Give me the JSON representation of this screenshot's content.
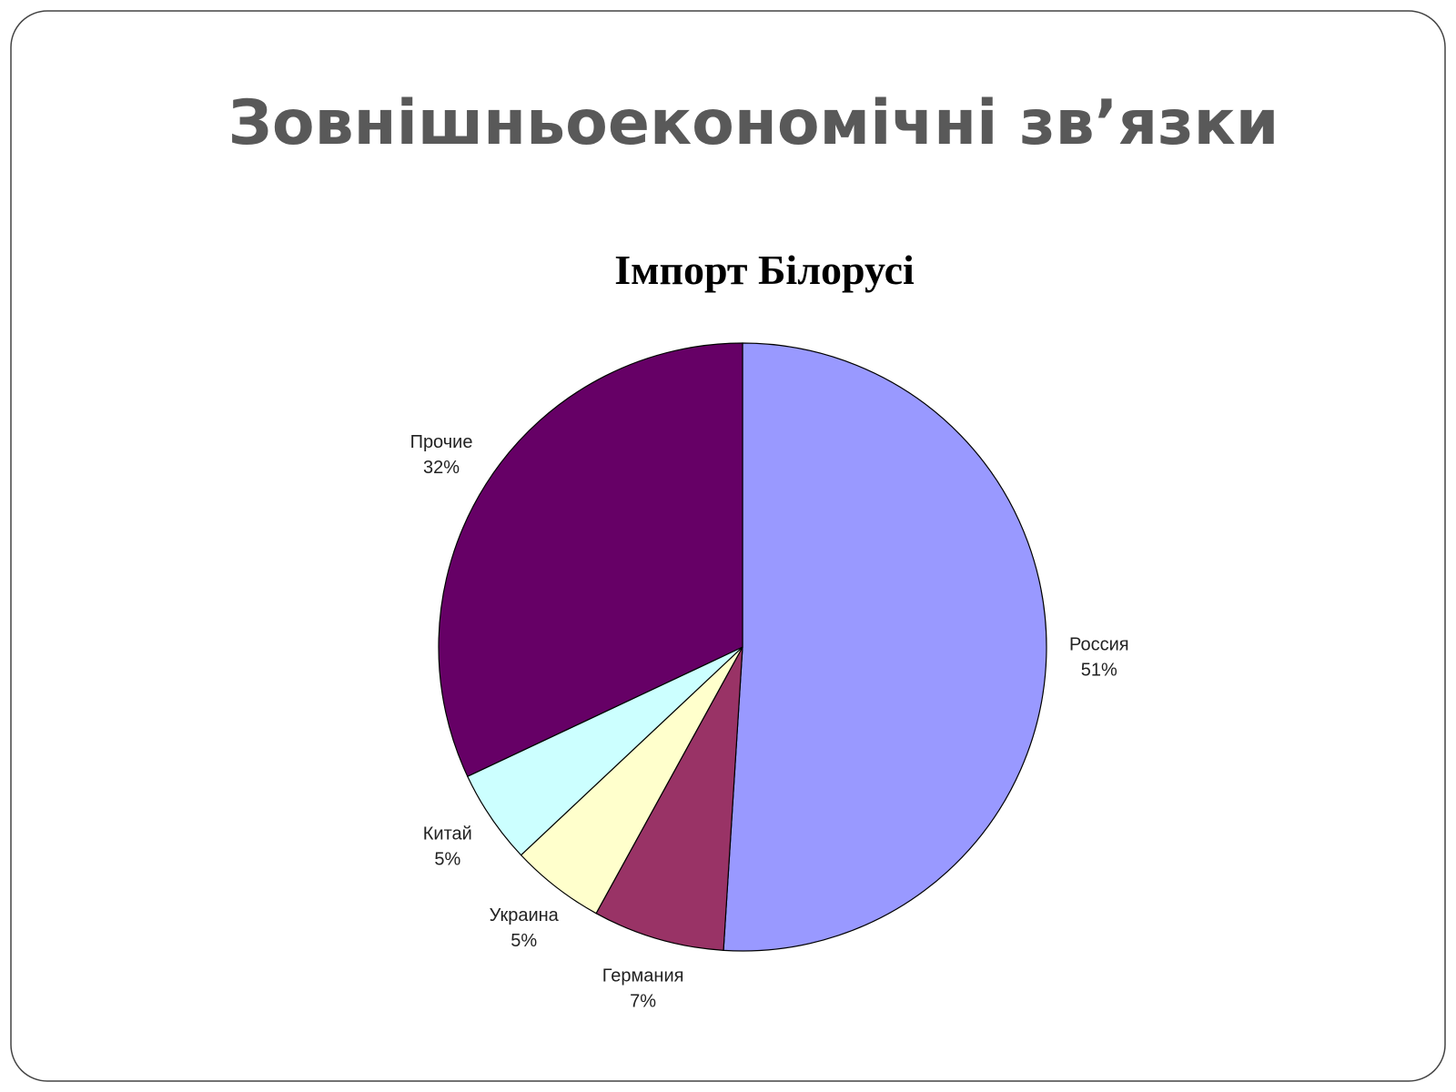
{
  "slide": {
    "title": "Зовнішньоекономічні зв’язки"
  },
  "chart_data": {
    "type": "pie",
    "title": "Імпорт Білорусі",
    "categories": [
      "Россия",
      "Германия",
      "Украина",
      "Китай",
      "Прочие"
    ],
    "values": [
      51,
      7,
      5,
      5,
      32
    ],
    "value_labels": [
      "51%",
      "7%",
      "5%",
      "5%",
      "32%"
    ],
    "colors": [
      "#9999ff",
      "#993366",
      "#ffffcc",
      "#ccffff",
      "#660066"
    ]
  }
}
